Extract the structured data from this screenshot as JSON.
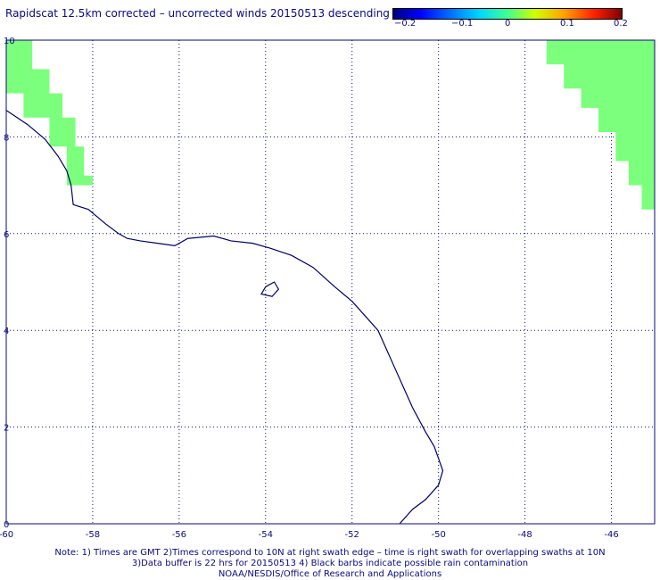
{
  "title": "Rapidscat 12.5km corrected – uncorrected winds 20150513 descending",
  "colorbar": {
    "ticks": [
      "−0.2",
      "−0.1",
      "0",
      "0.1",
      "0.2"
    ],
    "colors": [
      "#000080",
      "#0000ff",
      "#00d8ff",
      "#40ff90",
      "#d0ff00",
      "#ffa000",
      "#ff2000",
      "#800000"
    ]
  },
  "map": {
    "lon_labels": [
      "-60",
      "-58",
      "-56",
      "-54",
      "-52",
      "-50",
      "-48",
      "-46"
    ],
    "lat_labels": [
      "0",
      "2",
      "4",
      "6",
      "8",
      "10"
    ],
    "lon_range": [
      -60,
      -45
    ],
    "lat_range": [
      0,
      10
    ],
    "coast_color": "#000066",
    "swath_color": "#7cff7c",
    "grid_style": "dotted",
    "swaths": [
      {
        "name": "left-swath-edge",
        "lon_lat": [
          [
            -60,
            10
          ],
          [
            -59.4,
            10
          ],
          [
            -59.4,
            9.4
          ],
          [
            -59.0,
            9.4
          ],
          [
            -59.0,
            8.9
          ],
          [
            -58.7,
            8.9
          ],
          [
            -58.7,
            8.4
          ],
          [
            -58.4,
            8.4
          ],
          [
            -58.4,
            7.8
          ],
          [
            -58.2,
            7.8
          ],
          [
            -58.2,
            7.2
          ],
          [
            -58.0,
            7.2
          ],
          [
            -58.0,
            7.0
          ],
          [
            -58.6,
            7.0
          ],
          [
            -58.6,
            7.8
          ],
          [
            -59.0,
            7.8
          ],
          [
            -59.0,
            8.4
          ],
          [
            -59.6,
            8.4
          ],
          [
            -59.6,
            8.9
          ],
          [
            -60,
            8.9
          ]
        ]
      },
      {
        "name": "right-swath-edge",
        "lon_lat": [
          [
            -47.5,
            10
          ],
          [
            -45,
            10
          ],
          [
            -45,
            6.5
          ],
          [
            -45.3,
            6.5
          ],
          [
            -45.3,
            7.0
          ],
          [
            -45.6,
            7.0
          ],
          [
            -45.6,
            7.5
          ],
          [
            -45.9,
            7.5
          ],
          [
            -45.9,
            8.1
          ],
          [
            -46.3,
            8.1
          ],
          [
            -46.3,
            8.6
          ],
          [
            -46.7,
            8.6
          ],
          [
            -46.7,
            9.0
          ],
          [
            -47.1,
            9.0
          ],
          [
            -47.1,
            9.5
          ],
          [
            -47.5,
            9.5
          ]
        ]
      }
    ],
    "coastline": [
      [
        -60,
        8.55
      ],
      [
        -59.5,
        8.25
      ],
      [
        -59.1,
        7.95
      ],
      [
        -58.8,
        7.6
      ],
      [
        -58.6,
        7.3
      ],
      [
        -58.5,
        7.0
      ],
      [
        -58.45,
        6.6
      ],
      [
        -58.1,
        6.5
      ],
      [
        -57.7,
        6.2
      ],
      [
        -57.4,
        6.0
      ],
      [
        -57.2,
        5.9
      ],
      [
        -56.9,
        5.85
      ],
      [
        -56.5,
        5.8
      ],
      [
        -56.1,
        5.75
      ],
      [
        -55.8,
        5.9
      ],
      [
        -55.2,
        5.95
      ],
      [
        -54.8,
        5.85
      ],
      [
        -54.3,
        5.8
      ],
      [
        -53.9,
        5.7
      ],
      [
        -53.4,
        5.55
      ],
      [
        -52.9,
        5.3
      ],
      [
        -52.4,
        4.9
      ],
      [
        -52.0,
        4.6
      ],
      [
        -51.7,
        4.3
      ],
      [
        -51.4,
        4.0
      ],
      [
        -51.2,
        3.6
      ],
      [
        -51.0,
        3.2
      ],
      [
        -50.8,
        2.8
      ],
      [
        -50.6,
        2.4
      ],
      [
        -50.3,
        1.9
      ],
      [
        -50.1,
        1.6
      ],
      [
        -49.9,
        1.1
      ],
      [
        -50.0,
        0.8
      ],
      [
        -50.3,
        0.5
      ],
      [
        -50.6,
        0.3
      ],
      [
        -50.9,
        0.0
      ]
    ],
    "island": [
      [
        -54.0,
        4.9
      ],
      [
        -53.8,
        5.0
      ],
      [
        -53.7,
        4.85
      ],
      [
        -53.85,
        4.7
      ],
      [
        -54.1,
        4.75
      ]
    ],
    "notes": [
      "Note: 1) Times are GMT 2)Times correspond to 10N at right swath edge – time is right swath for overlapping swaths at 10N",
      "3)Data buffer is 22 hrs for 20150513 4) Black barbs indicate possible rain contamination",
      "NOAA/NESDIS/Office of Research and Applications"
    ]
  }
}
